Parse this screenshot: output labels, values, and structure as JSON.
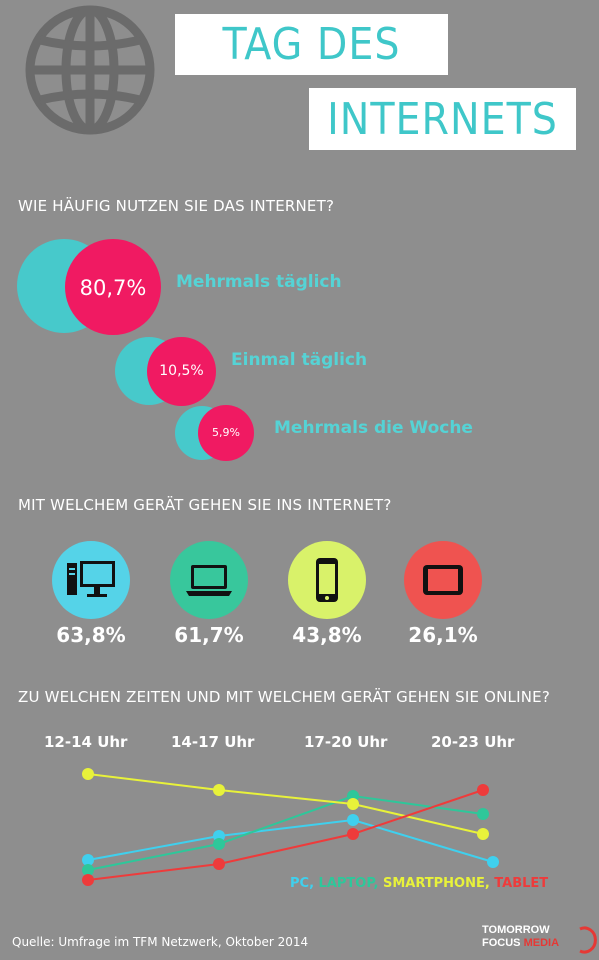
{
  "header": {
    "title_line1": "TAG DES",
    "title_line2": "INTERNETS",
    "accent_color": "#3fc7c9"
  },
  "q1": {
    "question": "WIE HÄUFIG NUTZEN SIE DAS INTERNET?",
    "items": [
      {
        "pct": "80,7%",
        "label": "Mehrmals täglich"
      },
      {
        "pct": "10,5%",
        "label": "Einmal täglich"
      },
      {
        "pct": "5,9%",
        "label": "Mehrmals die Woche"
      }
    ]
  },
  "q2": {
    "question": "MIT WELCHEM GERÄT GEHEN SIE INS INTERNET?",
    "devices": [
      {
        "icon": "desktop-pc-icon",
        "pct": "63,8%",
        "color": "#55d3e8"
      },
      {
        "icon": "laptop-icon",
        "pct": "61,7%",
        "color": "#38c79c"
      },
      {
        "icon": "smartphone-icon",
        "pct": "43,8%",
        "color": "#d9f26a"
      },
      {
        "icon": "tablet-icon",
        "pct": "26,1%",
        "color": "#ef5350"
      }
    ]
  },
  "q3": {
    "question": "ZU WELCHEN ZEITEN UND MIT WELCHEM GERÄT GEHEN SIE ONLINE?",
    "legend_sep": ", "
  },
  "chart_data": {
    "type": "line",
    "categories": [
      "12-14 Uhr",
      "14-17 Uhr",
      "17-20 Uhr",
      "20-23 Uhr"
    ],
    "series": [
      {
        "name": "PC",
        "color": "#3fd0ee",
        "values": [
          2.0,
          3.2,
          4.0,
          1.9
        ]
      },
      {
        "name": "LAPTOP",
        "color": "#2ec79a",
        "values": [
          1.5,
          2.8,
          5.2,
          4.3
        ]
      },
      {
        "name": "SMARTPHONE",
        "color": "#e8f23a",
        "values": [
          6.3,
          5.5,
          4.8,
          3.3
        ]
      },
      {
        "name": "TABLET",
        "color": "#ee3b3b",
        "values": [
          1.0,
          1.8,
          3.3,
          5.5
        ]
      }
    ],
    "ylim": [
      0,
      7
    ]
  },
  "footer": {
    "source": "Quelle:  Umfrage im TFM Netzwerk, Oktober 2014",
    "logo_line1": "TOMORROW",
    "logo_line2a": "FOCUS ",
    "logo_line2b": "MEDIA"
  }
}
